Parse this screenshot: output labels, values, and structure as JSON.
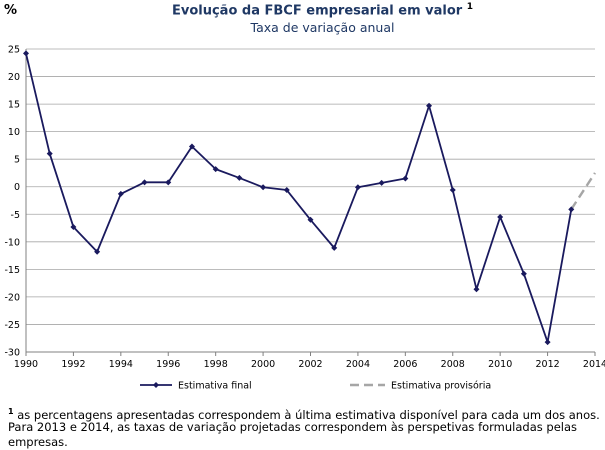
{
  "header": {
    "unit_label": "%",
    "title": "Evolução da FBCF empresarial em valor",
    "title_sup": "1",
    "subtitle": "Taxa de variação anual"
  },
  "footnotes": {
    "marker": "1",
    "line1": "as percentagens apresentadas correspondem à última estimativa disponível para cada um dos anos.",
    "line2": "Para 2013 e 2014, as taxas de variação projetadas correspondem às perspetivas formuladas pelas empresas."
  },
  "chart_data": {
    "type": "line",
    "title": "Evolução da FBCF empresarial em valor",
    "subtitle": "Taxa de variação anual",
    "ylabel": "%",
    "xlim": [
      1990,
      2014
    ],
    "ylim": [
      -30,
      25
    ],
    "y_ticks": [
      25,
      20,
      15,
      10,
      5,
      0,
      -5,
      -10,
      -15,
      -20,
      -25,
      -30
    ],
    "x_ticks": [
      1990,
      1992,
      1994,
      1996,
      1998,
      2000,
      2002,
      2004,
      2006,
      2008,
      2010,
      2012,
      2014
    ],
    "grid": true,
    "colors": {
      "final": "#1a1a5e",
      "provisional": "#a6a6a6",
      "grid": "#a6a6a6"
    },
    "series": [
      {
        "name": "Estimativa final",
        "style": "solid-with-markers",
        "x": [
          1990,
          1991,
          1992,
          1993,
          1994,
          1995,
          1996,
          1997,
          1998,
          1999,
          2000,
          2001,
          2002,
          2003,
          2004,
          2005,
          2006,
          2007,
          2008,
          2009,
          2010,
          2011,
          2012,
          2013
        ],
        "values": [
          24.2,
          6.0,
          -7.3,
          -11.8,
          -1.3,
          0.8,
          0.8,
          7.3,
          3.2,
          1.6,
          -0.1,
          -0.6,
          -6.0,
          -11.1,
          -0.1,
          0.7,
          1.5,
          14.7,
          -0.6,
          -18.6,
          -5.5,
          -15.8,
          -28.2,
          -4.1
        ]
      },
      {
        "name": "Estimativa provisória",
        "style": "dashed",
        "x": [
          2013,
          2014
        ],
        "values": [
          -4.1,
          2.5
        ]
      }
    ],
    "legend": {
      "position": "bottom"
    }
  }
}
